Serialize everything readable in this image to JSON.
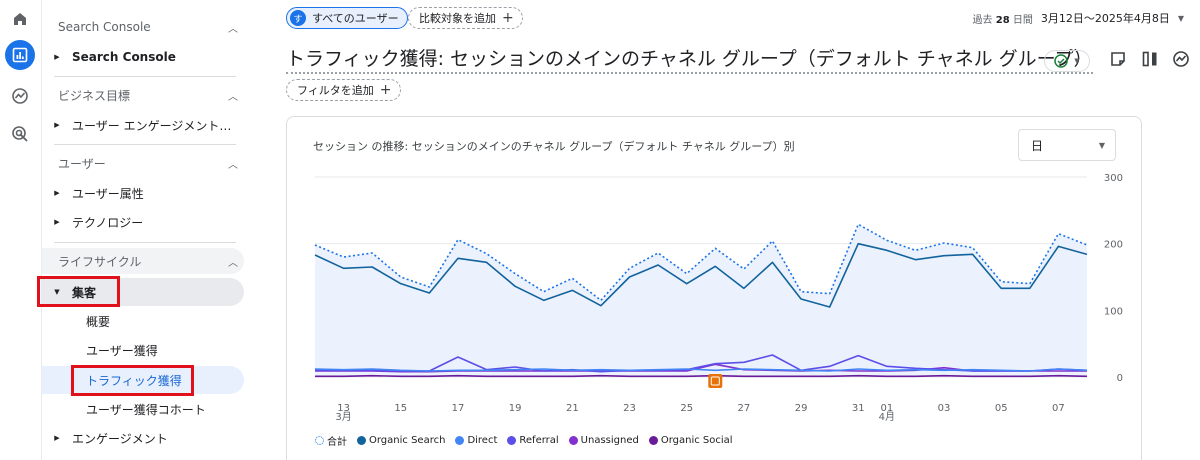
{
  "rail": {
    "icons": [
      "home-icon",
      "reports-icon",
      "explore-icon",
      "advertising-icon"
    ]
  },
  "sidebar": {
    "sections": [
      {
        "title": "Search Console",
        "items": [
          {
            "label": "Search Console"
          }
        ]
      },
      {
        "title": "ビジネス目標",
        "items": [
          {
            "label": "ユーザー エンゲージメントと…"
          }
        ]
      },
      {
        "title": "ユーザー",
        "items": [
          {
            "label": "ユーザー属性"
          },
          {
            "label": "テクノロジー"
          }
        ]
      },
      {
        "title": "ライフサイクル"
      }
    ],
    "lifecycle": {
      "acquisition_label": "集客",
      "sub_items": [
        "概要",
        "ユーザー獲得",
        "トラフィック獲得",
        "ユーザー獲得コホート"
      ],
      "engagement_label": "エンゲージメント"
    }
  },
  "header": {
    "user_chip_avatar": "す",
    "user_chip_label": "すべてのユーザー",
    "compare_label": "比較対象を追加",
    "date_prefix": "過去",
    "date_days": "28",
    "date_unit": "日間",
    "date_range": "3月12日〜2025年4月8日"
  },
  "report": {
    "title": "トラフィック獲得: セッションのメインのチャネル グループ（デフォルト チャネル グループ）",
    "filter_label": "フィルタを追加"
  },
  "card": {
    "title": "セッション の推移: セッションのメインのチャネル グループ（デフォルト チャネル グループ）別",
    "granularity": "日"
  },
  "chart_data": {
    "type": "line",
    "ylim": [
      0,
      300
    ],
    "yticks": [
      "300",
      "200",
      "100",
      "0"
    ],
    "xtick_labels": [
      {
        "day": 1,
        "label": "13",
        "sub": "3月"
      },
      {
        "day": 3,
        "label": "15"
      },
      {
        "day": 5,
        "label": "17"
      },
      {
        "day": 7,
        "label": "19"
      },
      {
        "day": 9,
        "label": "21"
      },
      {
        "day": 11,
        "label": "23"
      },
      {
        "day": 13,
        "label": "25"
      },
      {
        "day": 15,
        "label": "27"
      },
      {
        "day": 17,
        "label": "29"
      },
      {
        "day": 19,
        "label": "31"
      },
      {
        "day": 20,
        "label": "01",
        "sub": "4月"
      },
      {
        "day": 22,
        "label": "03"
      },
      {
        "day": 24,
        "label": "05"
      },
      {
        "day": 26,
        "label": "07"
      }
    ],
    "series": [
      {
        "name": "合計",
        "color": "#1a73e8",
        "style": "dotted",
        "values": [
          198,
          180,
          186,
          150,
          135,
          206,
          185,
          155,
          128,
          148,
          115,
          163,
          186,
          155,
          193,
          162,
          204,
          128,
          125,
          229,
          205,
          190,
          201,
          194,
          143,
          140,
          215,
          198
        ]
      },
      {
        "name": "Organic Search",
        "color": "#12639c",
        "style": "solid",
        "values": [
          183,
          163,
          165,
          140,
          126,
          178,
          172,
          136,
          115,
          130,
          107,
          150,
          168,
          140,
          166,
          133,
          172,
          117,
          105,
          200,
          190,
          176,
          182,
          184,
          133,
          133,
          196,
          184
        ]
      },
      {
        "name": "Direct",
        "color": "#4285f4",
        "style": "solid",
        "values": [
          12,
          11,
          12,
          10,
          9,
          10,
          10,
          11,
          12,
          10,
          11,
          10,
          11,
          12,
          10,
          12,
          11,
          10,
          9,
          12,
          10,
          11,
          10,
          11,
          10,
          9,
          12,
          10
        ]
      },
      {
        "name": "Referral",
        "color": "#5c4ee8",
        "style": "solid",
        "values": [
          10,
          10,
          10,
          9,
          9,
          30,
          11,
          15,
          9,
          11,
          8,
          10,
          10,
          11,
          20,
          22,
          33,
          10,
          16,
          32,
          16,
          13,
          11,
          9,
          9,
          9,
          12,
          10
        ]
      },
      {
        "name": "Unassigned",
        "color": "#8430ce",
        "style": "solid",
        "values": [
          9,
          9,
          9,
          8,
          8,
          9,
          9,
          9,
          9,
          9,
          9,
          9,
          9,
          9,
          19,
          11,
          10,
          9,
          10,
          9,
          9,
          10,
          14,
          9,
          9,
          9,
          9,
          9
        ]
      },
      {
        "name": "Organic Social",
        "color": "#6a1b9a",
        "style": "solid",
        "values": [
          1,
          1,
          2,
          1,
          1,
          2,
          1,
          1,
          1,
          1,
          2,
          1,
          1,
          1,
          2,
          1,
          1,
          1,
          1,
          2,
          1,
          1,
          2,
          1,
          1,
          1,
          2,
          1
        ]
      }
    ],
    "annotation_day": 14
  }
}
